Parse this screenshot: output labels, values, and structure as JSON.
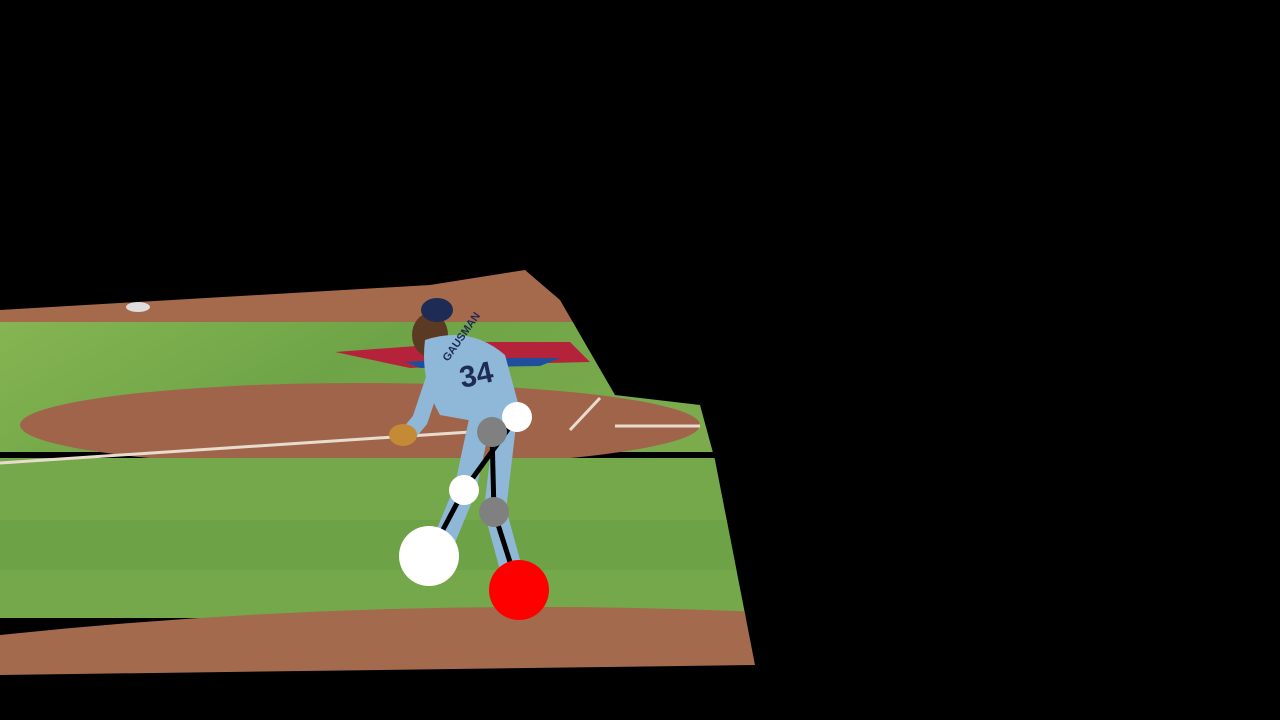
{
  "scene": {
    "description_hidden": "",
    "jersey_number": "34",
    "jersey_name": "GAUSMAN"
  },
  "colors": {
    "background": "#000000",
    "grass_light": "#7fb04e",
    "grass_dark": "#5e9440",
    "dirt": "#a2664a",
    "uniform": "#8fb8d8",
    "cap": "#1d2b55",
    "pose_line": "#000000",
    "keypoint_white": "#ffffff",
    "keypoint_gray": "#808080",
    "keypoint_red": "#ff0000"
  },
  "pose_keypoints": [
    {
      "name": "hip-left",
      "color": "keypoint_white"
    },
    {
      "name": "hip-right",
      "color": "keypoint_gray"
    },
    {
      "name": "knee-left",
      "color": "keypoint_white"
    },
    {
      "name": "knee-right",
      "color": "keypoint_gray"
    },
    {
      "name": "ankle-left",
      "color": "keypoint_white"
    },
    {
      "name": "ankle-right",
      "color": "keypoint_red"
    }
  ]
}
